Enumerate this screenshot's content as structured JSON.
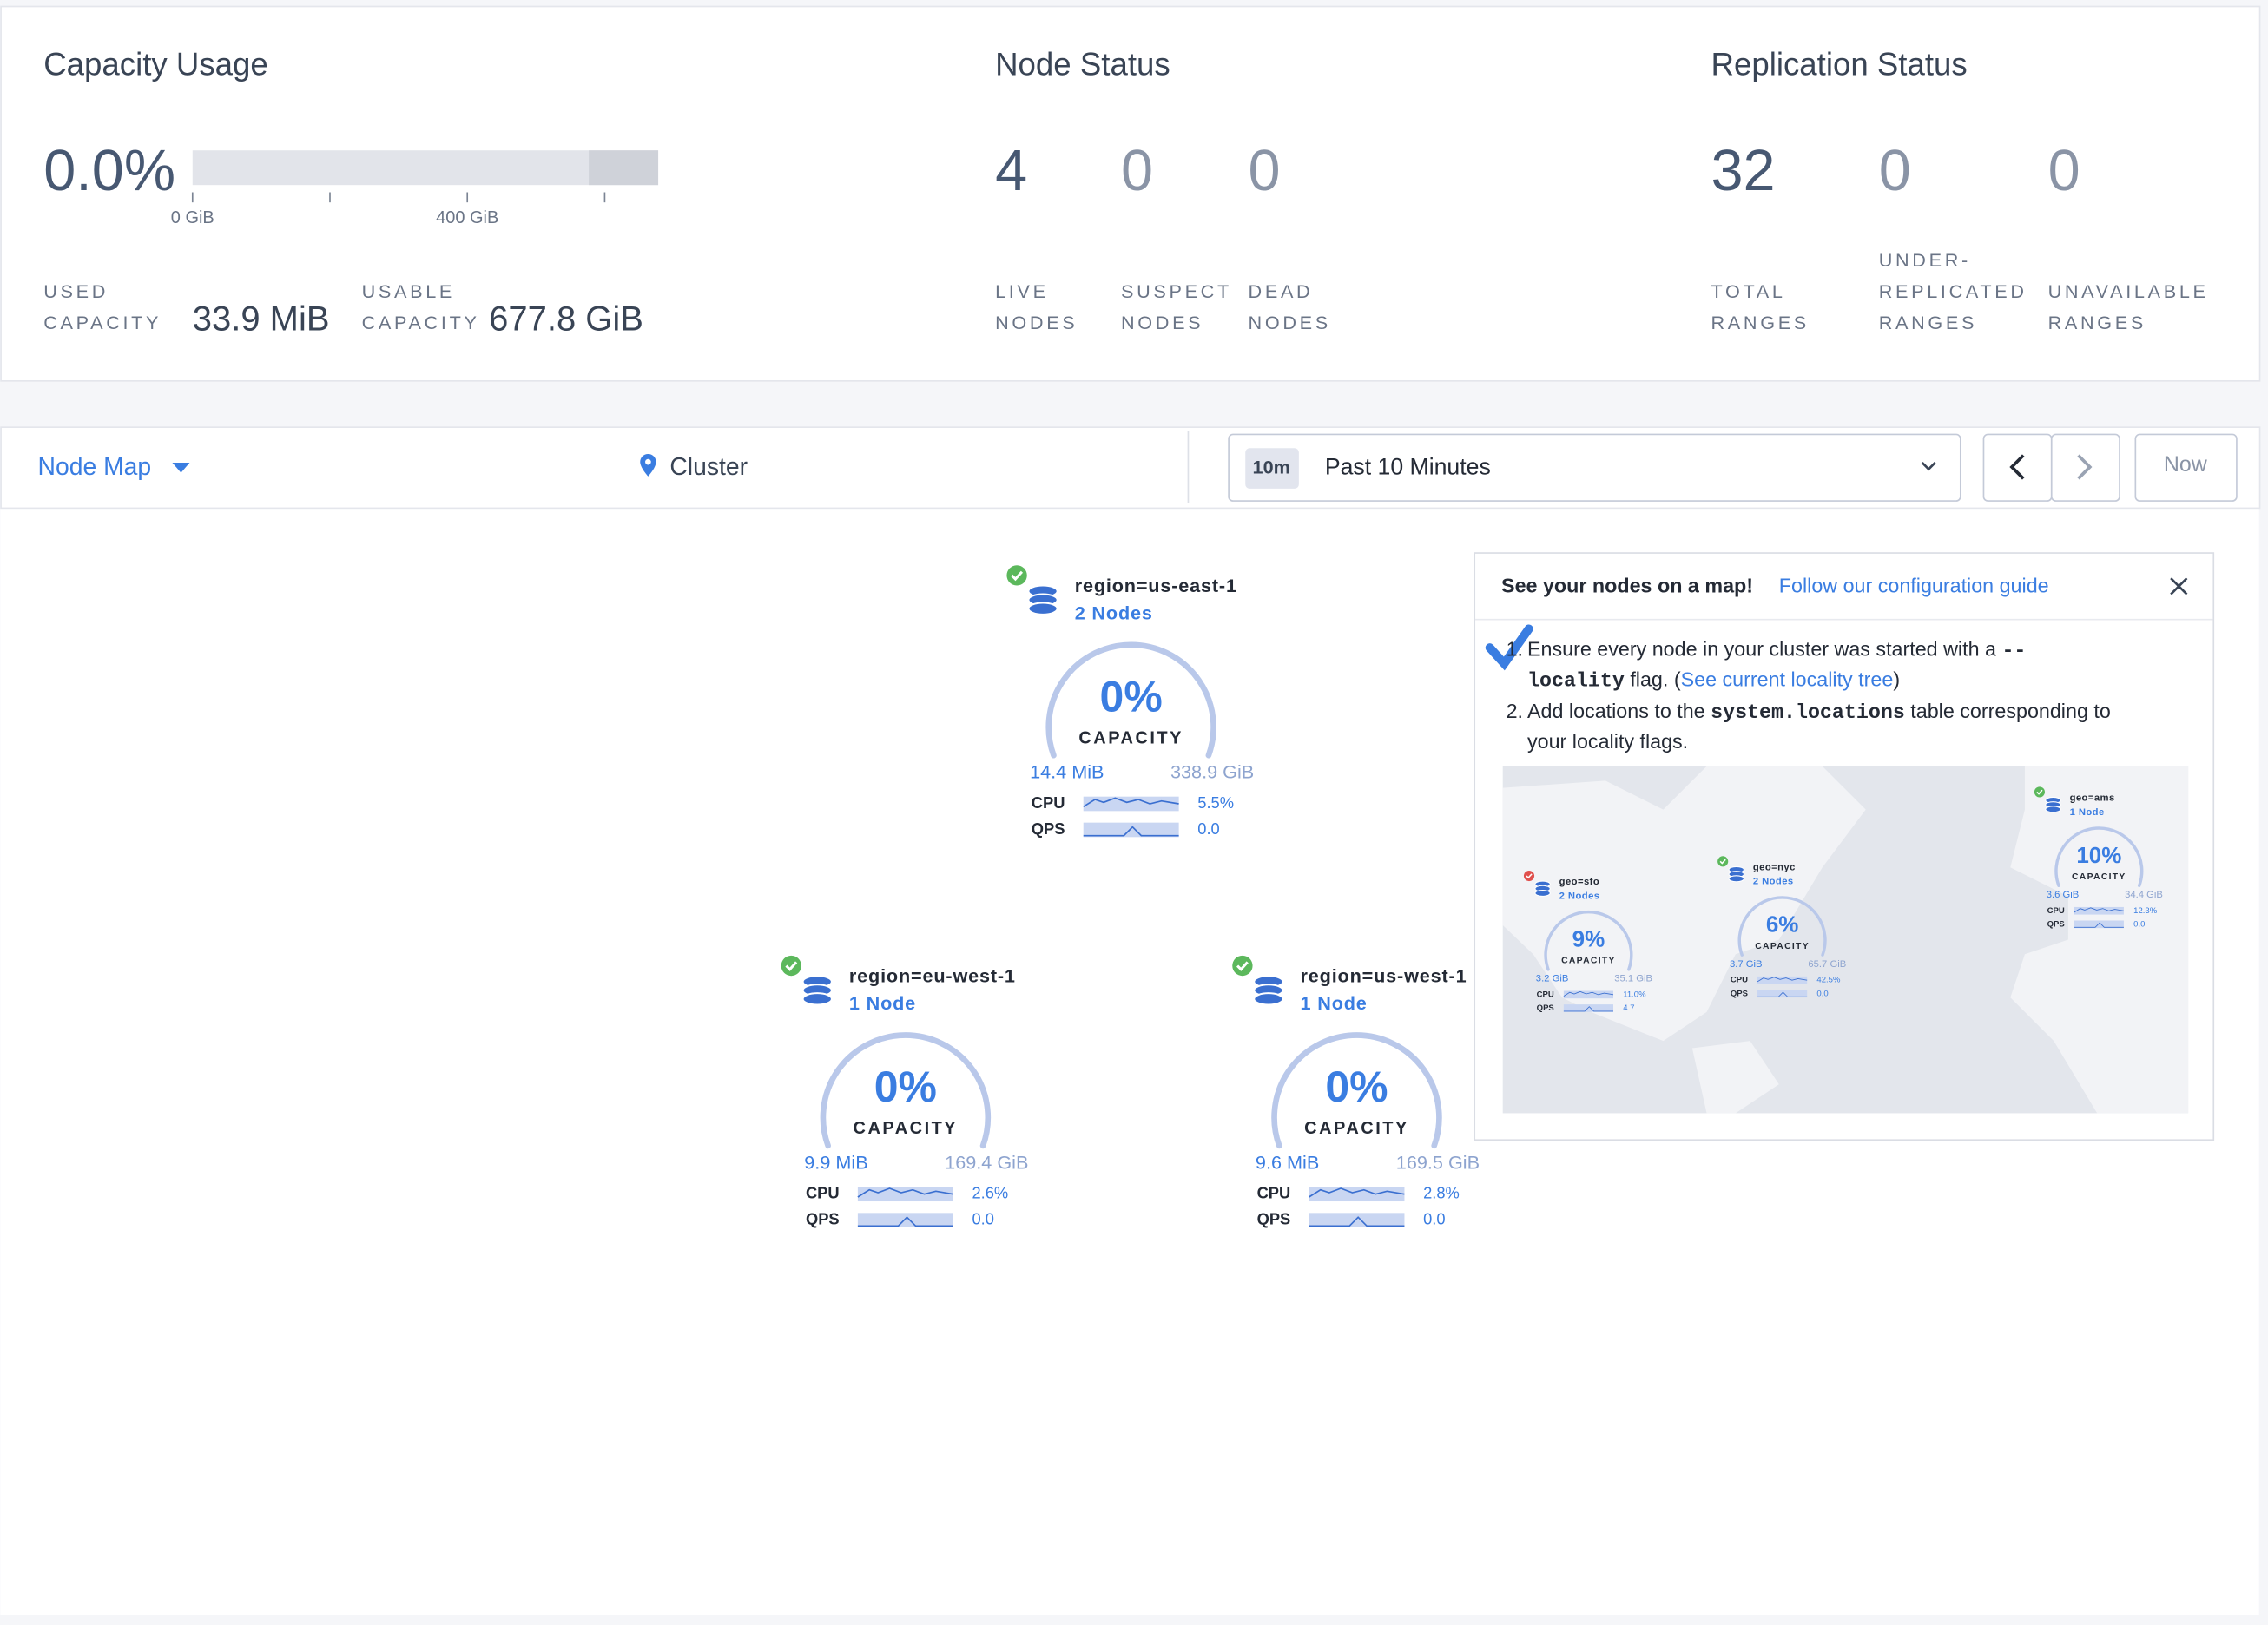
{
  "capacity_usage": {
    "title": "Capacity Usage",
    "percent": "0.0%",
    "ticks": [
      "0 GiB",
      "400 GiB"
    ],
    "used_label": [
      "USED",
      "CAPACITY"
    ],
    "used": "33.9 MiB",
    "usable_label": [
      "USABLE",
      "CAPACITY"
    ],
    "usable": "677.8 GiB"
  },
  "node_status": {
    "title": "Node Status",
    "stats": [
      {
        "value": "4",
        "label": [
          "LIVE",
          "NODES"
        ]
      },
      {
        "value": "0",
        "label": [
          "SUSPECT",
          "NODES"
        ]
      },
      {
        "value": "0",
        "label": [
          "DEAD",
          "NODES"
        ]
      }
    ]
  },
  "replication_status": {
    "title": "Replication Status",
    "stats": [
      {
        "value": "32",
        "label": [
          "TOTAL",
          "RANGES"
        ]
      },
      {
        "value": "0",
        "label": [
          "UNDER-",
          "REPLICATED",
          "RANGES"
        ]
      },
      {
        "value": "0",
        "label": [
          "UNAVAILABLE",
          "RANGES"
        ]
      }
    ]
  },
  "toolbar": {
    "view": "Node Map",
    "breadcrumb": "Cluster",
    "time_badge": "10m",
    "time_range": "Past 10 Minutes",
    "now": "Now"
  },
  "localities": [
    {
      "name": "region=us-east-1",
      "nodes": "2 Nodes",
      "percent": "0%",
      "capacity_label": "CAPACITY",
      "used": "14.4 MiB",
      "total": "338.9 GiB",
      "cpu_label": "CPU",
      "cpu": "5.5%",
      "qps_label": "QPS",
      "qps": "0.0",
      "status_color": "#5cb85c"
    },
    {
      "name": "region=eu-west-1",
      "nodes": "1 Node",
      "percent": "0%",
      "capacity_label": "CAPACITY",
      "used": "9.9 MiB",
      "total": "169.4 GiB",
      "cpu_label": "CPU",
      "cpu": "2.6%",
      "qps_label": "QPS",
      "qps": "0.0",
      "status_color": "#5cb85c"
    },
    {
      "name": "region=us-west-1",
      "nodes": "1 Node",
      "percent": "0%",
      "capacity_label": "CAPACITY",
      "used": "9.6 MiB",
      "total": "169.5 GiB",
      "cpu_label": "CPU",
      "cpu": "2.8%",
      "qps_label": "QPS",
      "qps": "0.0",
      "status_color": "#5cb85c"
    }
  ],
  "tip": {
    "title": "See your nodes on a map!",
    "link": "Follow our configuration guide",
    "steps": [
      {
        "number": "1.",
        "lines": [
          [
            {
              "text": "Ensure every node in your cluster was started with a "
            },
            {
              "code": "--"
            }
          ],
          [
            {
              "code": "locality"
            },
            {
              "text": " flag. ("
            },
            {
              "link": "See current locality tree"
            },
            {
              "text": ")"
            }
          ]
        ]
      },
      {
        "number": "2.",
        "lines": [
          [
            {
              "text": "Add locations to the "
            },
            {
              "code": "system.locations"
            },
            {
              "text": " table corresponding to"
            }
          ],
          [
            {
              "text": "your locality flags."
            }
          ]
        ]
      }
    ],
    "map_localities": [
      {
        "name": "geo=sfo",
        "nodes": "2 Nodes",
        "percent": "9%",
        "capacity_label": "CAPACITY",
        "used": "3.2 GiB",
        "total": "35.1 GiB",
        "cpu_label": "CPU",
        "cpu": "11.0%",
        "qps_label": "QPS",
        "qps": "4.7",
        "status_color": "#e0504d"
      },
      {
        "name": "geo=nyc",
        "nodes": "2 Nodes",
        "percent": "6%",
        "capacity_label": "CAPACITY",
        "used": "3.7 GiB",
        "total": "65.7 GiB",
        "cpu_label": "CPU",
        "cpu": "42.5%",
        "qps_label": "QPS",
        "qps": "0.0",
        "status_color": "#5cb85c"
      },
      {
        "name": "geo=ams",
        "nodes": "1 Node",
        "percent": "10%",
        "capacity_label": "CAPACITY",
        "used": "3.6 GiB",
        "total": "34.4 GiB",
        "cpu_label": "CPU",
        "cpu": "12.3%",
        "qps_label": "QPS",
        "qps": "0.0",
        "status_color": "#5cb85c"
      }
    ]
  }
}
